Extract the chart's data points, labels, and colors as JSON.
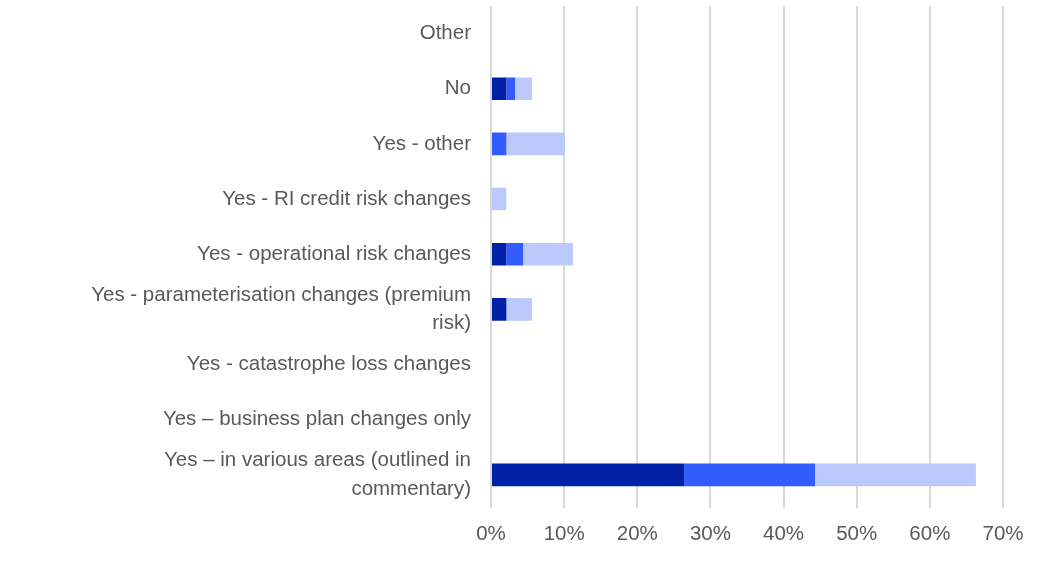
{
  "chart_data": {
    "type": "bar",
    "orientation": "horizontal",
    "stacked": true,
    "categories": [
      "Other",
      "No",
      "Yes - other",
      "Yes - RI credit risk changes",
      "Yes - operational risk changes",
      "Yes - parameterisation changes (premium risk)",
      "Yes - catastrophe loss changes",
      "Yes – business plan changes only",
      "Yes – in various areas (outlined in commentary)"
    ],
    "series": [
      {
        "color": "#0021a5",
        "values": [
          null,
          2.1,
          null,
          null,
          2.1,
          2.1,
          null,
          null,
          26.4
        ]
      },
      {
        "color": "#335cff",
        "values": [
          null,
          1.2,
          2.1,
          null,
          2.3,
          null,
          null,
          null,
          17.9
        ]
      },
      {
        "color": "#bcc9fc",
        "values": [
          null,
          2.3,
          8.0,
          2.1,
          6.8,
          3.5,
          null,
          null,
          22.0
        ]
      }
    ],
    "xlim": [
      0,
      70
    ],
    "xticks": [
      {
        "value": 0,
        "label": "0%"
      },
      {
        "value": 10,
        "label": "10%"
      },
      {
        "value": 20,
        "label": "20%"
      },
      {
        "value": 30,
        "label": "30%"
      },
      {
        "value": 40,
        "label": "40%"
      },
      {
        "value": 50,
        "label": "50%"
      },
      {
        "value": 60,
        "label": "60%"
      },
      {
        "value": 70,
        "label": "70%"
      }
    ],
    "grid": "x",
    "legend": false
  }
}
